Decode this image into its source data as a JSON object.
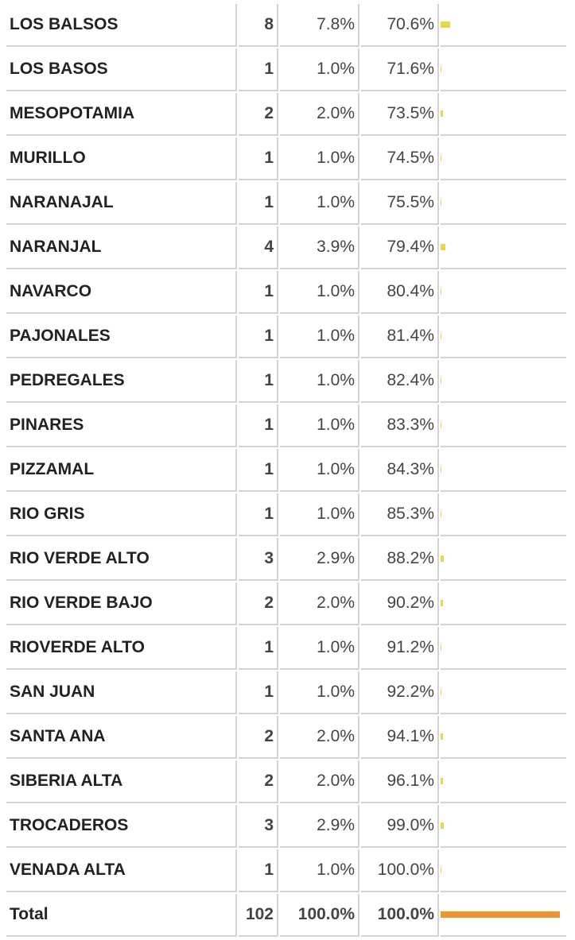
{
  "table": {
    "rows": [
      [
        "LOS BALSOS",
        8,
        "7.8%",
        "70.6%"
      ],
      [
        "LOS BASOS",
        1,
        "1.0%",
        "71.6%"
      ],
      [
        "MESOPOTAMIA",
        2,
        "2.0%",
        "73.5%"
      ],
      [
        "MURILLO",
        1,
        "1.0%",
        "74.5%"
      ],
      [
        "NARANAJAL",
        1,
        "1.0%",
        "75.5%"
      ],
      [
        "NARANJAL",
        4,
        "3.9%",
        "79.4%"
      ],
      [
        "NAVARCO",
        1,
        "1.0%",
        "80.4%"
      ],
      [
        "PAJONALES",
        1,
        "1.0%",
        "81.4%"
      ],
      [
        "PEDREGALES",
        1,
        "1.0%",
        "82.4%"
      ],
      [
        "PINARES",
        1,
        "1.0%",
        "83.3%"
      ],
      [
        "PIZZAMAL",
        1,
        "1.0%",
        "84.3%"
      ],
      [
        "RIO GRIS",
        1,
        "1.0%",
        "85.3%"
      ],
      [
        "RIO VERDE ALTO",
        3,
        "2.9%",
        "88.2%"
      ],
      [
        "RIO VERDE BAJO",
        2,
        "2.0%",
        "90.2%"
      ],
      [
        "RIOVERDE ALTO",
        1,
        "1.0%",
        "91.2%"
      ],
      [
        "SAN JUAN",
        1,
        "1.0%",
        "92.2%"
      ],
      [
        "SANTA ANA",
        2,
        "2.0%",
        "94.1%"
      ],
      [
        "SIBERIA ALTA",
        2,
        "2.0%",
        "96.1%"
      ],
      [
        "TROCADEROS",
        3,
        "2.9%",
        "99.0%"
      ],
      [
        "VENADA ALTA",
        1,
        "1.0%",
        "100.0%"
      ]
    ],
    "total": [
      "Total",
      102,
      "100.0%",
      "100.0%"
    ],
    "bar_color": "#e6d84a",
    "total_bar_color": "#f0922e"
  }
}
